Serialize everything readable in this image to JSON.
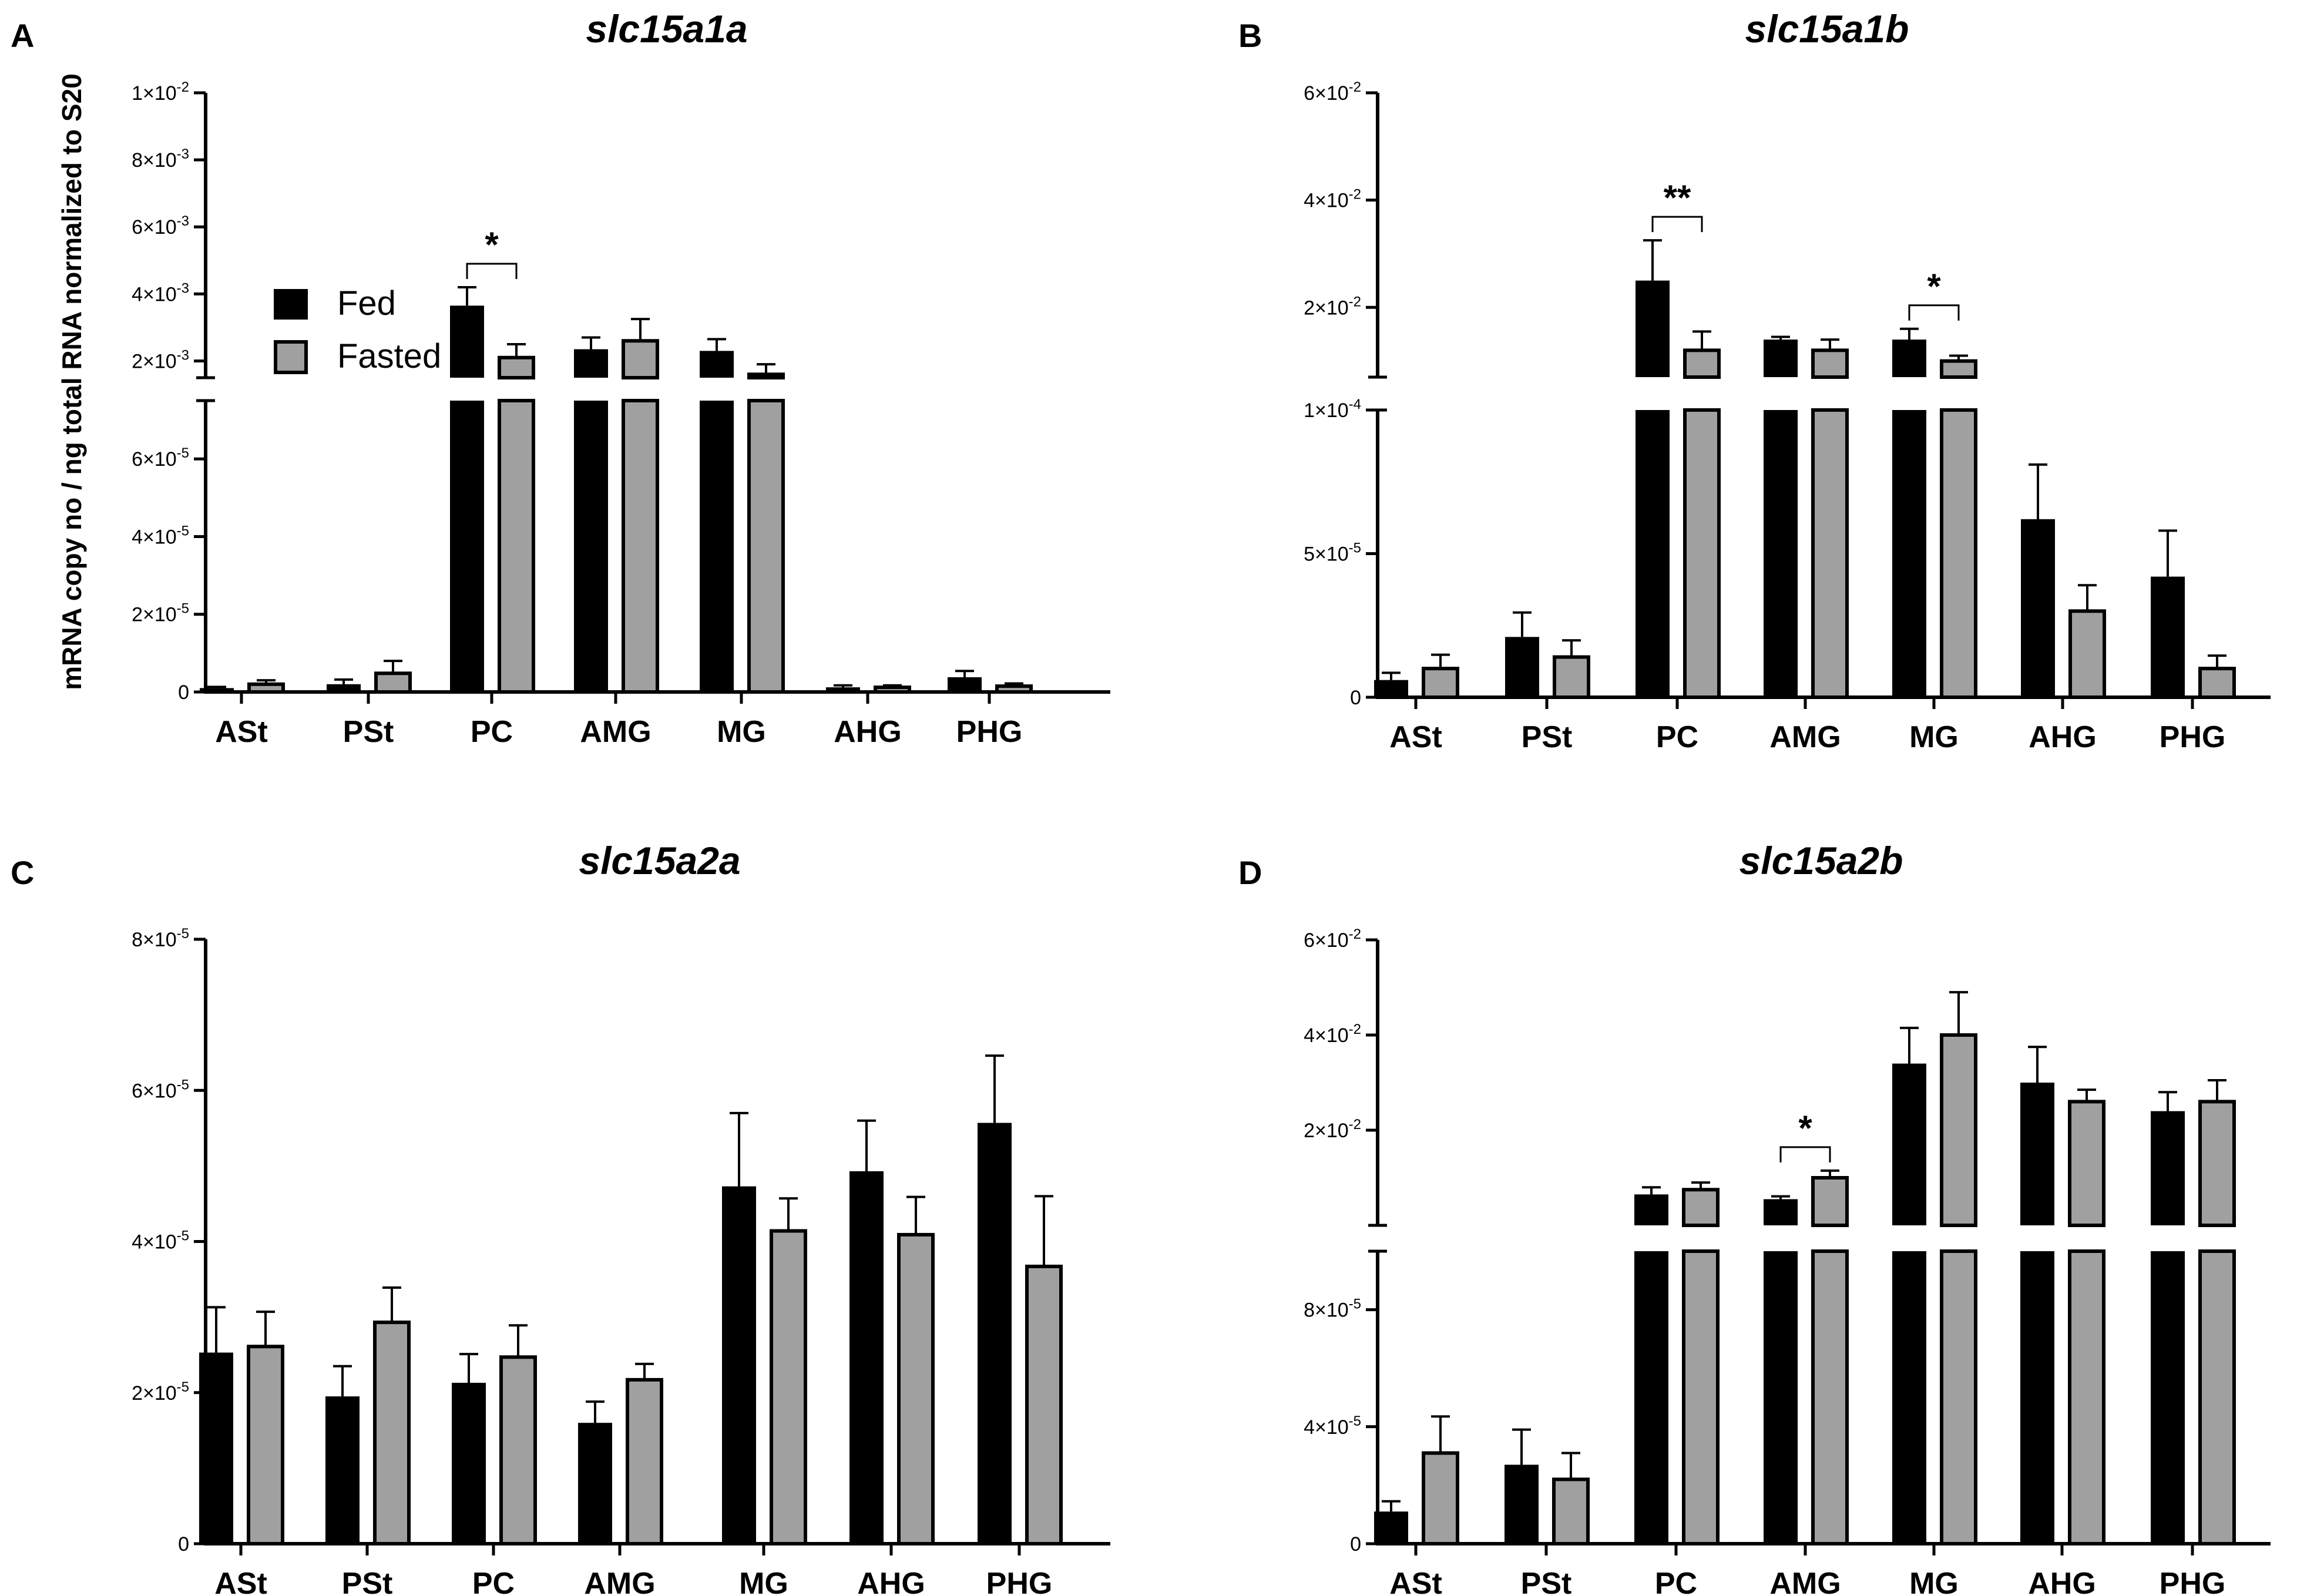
{
  "figure": {
    "y_axis_title": "mRNA copy no / ng total RNA normalized to S20"
  },
  "legend": {
    "fed_label": "Fed",
    "fasted_label": "Fasted",
    "fed_color": "#000000",
    "fasted_color": "#a0a0a0"
  },
  "chart_data": [
    {
      "panel": "A",
      "title": "slc15a1a",
      "type": "bar",
      "categories": [
        "ASt",
        "PSt",
        "PC",
        "AMG",
        "MG",
        "AHG",
        "PHG"
      ],
      "broken_axis": true,
      "lower_range": [
        0,
        7.5e-05
      ],
      "upper_range": [
        0.0015,
        0.01
      ],
      "lower_ticks": [
        {
          "value": 0,
          "label": "0"
        },
        {
          "value": 2e-05,
          "label": "2×10-5"
        },
        {
          "value": 4e-05,
          "label": "4×10-5"
        },
        {
          "value": 6e-05,
          "label": "6×10-5"
        }
      ],
      "upper_ticks": [
        {
          "value": 0.002,
          "label": "2×10-3"
        },
        {
          "value": 0.004,
          "label": "4×10-3"
        },
        {
          "value": 0.006,
          "label": "6×10-3"
        },
        {
          "value": 0.008,
          "label": "8×10-3"
        },
        {
          "value": 0.01,
          "label": "1×10-2"
        }
      ],
      "series": [
        {
          "name": "Fed",
          "values": [
            1e-06,
            2e-06,
            0.00365,
            0.00235,
            0.0023,
            1.2e-06,
            3.8e-06
          ],
          "errors": [
            3e-07,
            1.2e-06,
            0.00055,
            0.00035,
            0.00035,
            5e-07,
            1.6e-06
          ]
        },
        {
          "name": "Fasted",
          "values": [
            2e-06,
            4.8e-06,
            0.0021,
            0.0026,
            0.0016,
            1.2e-06,
            1.5e-06
          ],
          "errors": [
            1e-06,
            3.2e-06,
            0.0004,
            0.00065,
            0.0003,
            5e-07,
            7e-07
          ]
        }
      ],
      "significance": [
        {
          "category": "PC",
          "label": "*"
        }
      ]
    },
    {
      "panel": "B",
      "title": "slc15a1b",
      "type": "bar",
      "categories": [
        "ASt",
        "PSt",
        "PC",
        "AMG",
        "MG",
        "AHG",
        "PHG"
      ],
      "broken_axis": true,
      "lower_range": [
        0,
        0.0001
      ],
      "upper_range": [
        0.007,
        0.06
      ],
      "lower_ticks": [
        {
          "value": 0,
          "label": "0"
        },
        {
          "value": 5e-05,
          "label": "5×10-5"
        },
        {
          "value": 0.0001,
          "label": "1×10-4"
        }
      ],
      "upper_ticks": [
        {
          "value": 0.02,
          "label": "2×10-2"
        },
        {
          "value": 0.04,
          "label": "4×10-2"
        },
        {
          "value": 0.06,
          "label": "6×10-2"
        }
      ],
      "series": [
        {
          "name": "Fed",
          "values": [
            6e-06,
            2.1e-05,
            0.025,
            0.014,
            0.014,
            6.2e-05,
            4.2e-05
          ],
          "errors": [
            2.5e-06,
            8.5e-06,
            0.0075,
            0.0005,
            0.002,
            1.9e-05,
            1.6e-05
          ]
        },
        {
          "name": "Fasted",
          "values": [
            1e-05,
            1.4e-05,
            0.012,
            0.012,
            0.01,
            3e-05,
            1e-05
          ],
          "errors": [
            4.8e-06,
            5.8e-06,
            0.0035,
            0.002,
            0.001,
            9e-06,
            4.5e-06
          ]
        }
      ],
      "significance": [
        {
          "category": "PC",
          "label": "**"
        },
        {
          "category": "MG",
          "label": "*"
        }
      ]
    },
    {
      "panel": "C",
      "title": "slc15a2a",
      "type": "bar",
      "categories": [
        "ASt",
        "PSt",
        "PC",
        "AMG",
        "MG",
        "AHG",
        "PHG"
      ],
      "broken_axis": false,
      "ylim": [
        0,
        8e-05
      ],
      "ticks": [
        {
          "value": 0,
          "label": "0"
        },
        {
          "value": 2e-05,
          "label": "2×10-5"
        },
        {
          "value": 4e-05,
          "label": "4×10-5"
        },
        {
          "value": 6e-05,
          "label": "6×10-5"
        },
        {
          "value": 8e-05,
          "label": "8×10-5"
        }
      ],
      "series": [
        {
          "name": "Fed",
          "values": [
            2.53e-05,
            1.95e-05,
            2.13e-05,
            1.6e-05,
            4.73e-05,
            4.93e-05,
            5.57e-05
          ],
          "errors": [
            6e-06,
            4e-06,
            3.8e-06,
            2.8e-06,
            9.7e-06,
            6.7e-06,
            8.9e-06
          ]
        },
        {
          "name": "Fasted",
          "values": [
            2.61e-05,
            2.93e-05,
            2.47e-05,
            2.17e-05,
            4.14e-05,
            4.09e-05,
            3.67e-05
          ],
          "errors": [
            4.6e-06,
            4.6e-06,
            4.2e-06,
            2.1e-06,
            4.3e-06,
            5e-06,
            9.3e-06
          ]
        }
      ],
      "significance": []
    },
    {
      "panel": "D",
      "title": "slc15a2b",
      "type": "bar",
      "categories": [
        "ASt",
        "PSt",
        "PC",
        "AMG",
        "MG",
        "AHG",
        "PHG"
      ],
      "broken_axis": true,
      "lower_range": [
        0,
        0.0001
      ],
      "upper_range": [
        0,
        0.06
      ],
      "lower_ticks": [
        {
          "value": 0,
          "label": "0"
        },
        {
          "value": 4e-05,
          "label": "4×10-5"
        },
        {
          "value": 8e-05,
          "label": "8×10-5"
        }
      ],
      "upper_ticks": [
        {
          "value": 0.02,
          "label": "2×10-2"
        },
        {
          "value": 0.04,
          "label": "4×10-2"
        },
        {
          "value": 0.06,
          "label": "6×10-2"
        }
      ],
      "series": [
        {
          "name": "Fed",
          "values": [
            1.1e-05,
            2.7e-05,
            0.0065,
            0.0055,
            0.034,
            0.03,
            0.024
          ],
          "errors": [
            3.5e-06,
            1.2e-05,
            0.0015,
            0.0006,
            0.0075,
            0.0075,
            0.004
          ]
        },
        {
          "name": "Fasted",
          "values": [
            3.1e-05,
            2.2e-05,
            0.0075,
            0.01,
            0.04,
            0.026,
            0.026
          ],
          "errors": [
            1.25e-05,
            9e-06,
            0.0015,
            0.0015,
            0.009,
            0.0025,
            0.0045
          ]
        }
      ],
      "significance": [
        {
          "category": "AMG",
          "label": "*"
        }
      ]
    }
  ]
}
